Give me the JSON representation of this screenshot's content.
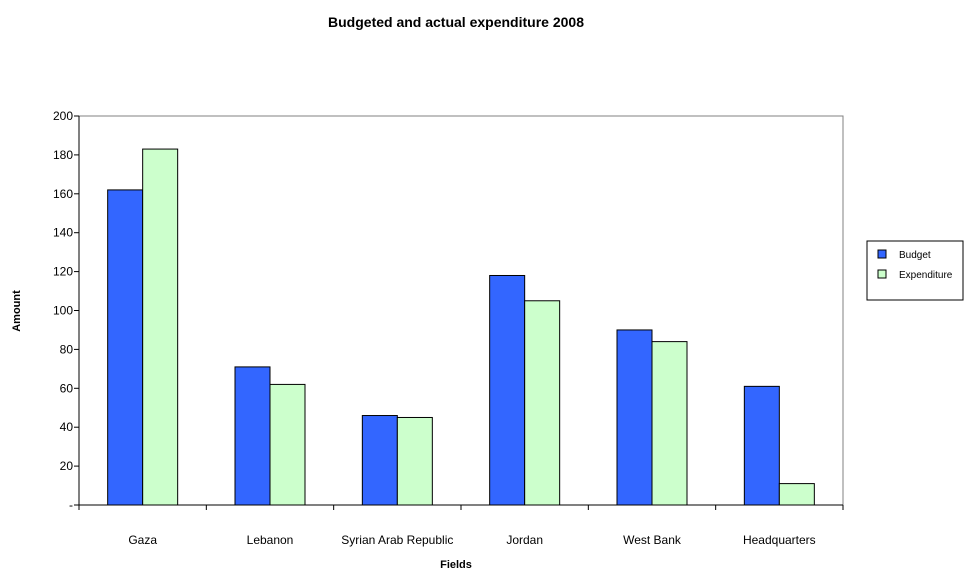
{
  "chart_data": {
    "type": "bar",
    "title": "Budgeted and actual expenditure 2008",
    "xlabel": "Fields",
    "ylabel": "Amount",
    "categories": [
      "Gaza",
      "Lebanon",
      "Syrian Arab Republic",
      "Jordan",
      "West Bank",
      "Headquarters"
    ],
    "series": [
      {
        "name": "Budget",
        "color": "#3366ff",
        "values": [
          162,
          71,
          46,
          118,
          90,
          61
        ]
      },
      {
        "name": "Expenditure",
        "color": "#ccffcc",
        "values": [
          183,
          62,
          45,
          105,
          84,
          11
        ]
      }
    ],
    "ylim": [
      0,
      200
    ],
    "yticks": [
      "-",
      "20",
      "40",
      "60",
      "80",
      "100",
      "120",
      "140",
      "160",
      "180",
      "200"
    ],
    "grid": false,
    "legend_position": "right"
  }
}
